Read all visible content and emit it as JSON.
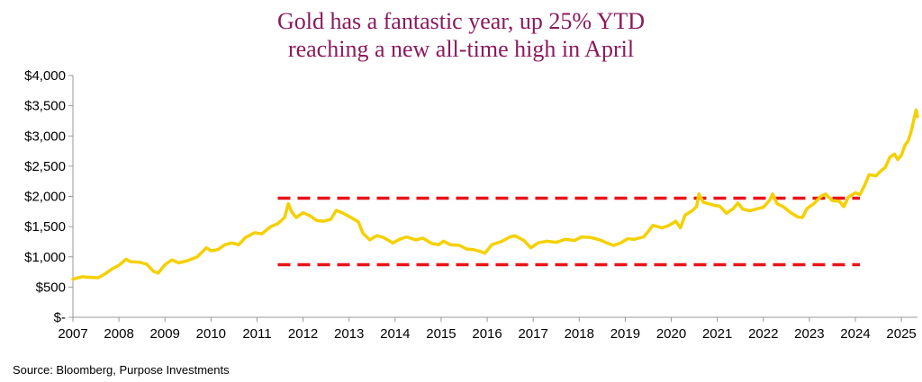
{
  "chart_data": {
    "type": "line",
    "title_lines": [
      "Gold has a fantastic year, up 25% YTD",
      "reaching a new all-time high in April"
    ],
    "source": "Source: Bloomberg, Purpose Investments",
    "y_ticks": [
      {
        "value": 0,
        "label": "$-"
      },
      {
        "value": 500,
        "label": "$500"
      },
      {
        "value": 1000,
        "label": "$1,000"
      },
      {
        "value": 1500,
        "label": "$1,500"
      },
      {
        "value": 2000,
        "label": "$2,000"
      },
      {
        "value": 2500,
        "label": "$2,500"
      },
      {
        "value": 3000,
        "label": "$3,000"
      },
      {
        "value": 3500,
        "label": "$3,500"
      },
      {
        "value": 4000,
        "label": "$4,000"
      }
    ],
    "x_ticks": [
      "2007",
      "2008",
      "2009",
      "2010",
      "2011",
      "2012",
      "2013",
      "2014",
      "2015",
      "2016",
      "2017",
      "2018",
      "2019",
      "2020",
      "2021",
      "2022",
      "2023",
      "2024",
      "2025"
    ],
    "xlim": [
      2007.0,
      2025.35
    ],
    "ylim": [
      0,
      4000
    ],
    "grid": false,
    "series": [
      {
        "color": "#f5d000",
        "points": [
          [
            2007.0,
            630
          ],
          [
            2007.2,
            670
          ],
          [
            2007.4,
            660
          ],
          [
            2007.55,
            655
          ],
          [
            2007.7,
            720
          ],
          [
            2007.85,
            800
          ],
          [
            2008.0,
            860
          ],
          [
            2008.15,
            960
          ],
          [
            2008.25,
            920
          ],
          [
            2008.45,
            910
          ],
          [
            2008.6,
            880
          ],
          [
            2008.75,
            760
          ],
          [
            2008.85,
            730
          ],
          [
            2009.0,
            870
          ],
          [
            2009.15,
            950
          ],
          [
            2009.3,
            900
          ],
          [
            2009.5,
            940
          ],
          [
            2009.7,
            1000
          ],
          [
            2009.9,
            1150
          ],
          [
            2010.0,
            1100
          ],
          [
            2010.15,
            1120
          ],
          [
            2010.3,
            1200
          ],
          [
            2010.45,
            1230
          ],
          [
            2010.6,
            1200
          ],
          [
            2010.75,
            1320
          ],
          [
            2010.95,
            1400
          ],
          [
            2011.1,
            1380
          ],
          [
            2011.3,
            1500
          ],
          [
            2011.45,
            1550
          ],
          [
            2011.6,
            1650
          ],
          [
            2011.68,
            1880
          ],
          [
            2011.75,
            1750
          ],
          [
            2011.85,
            1650
          ],
          [
            2012.0,
            1730
          ],
          [
            2012.15,
            1680
          ],
          [
            2012.3,
            1600
          ],
          [
            2012.45,
            1590
          ],
          [
            2012.6,
            1620
          ],
          [
            2012.72,
            1770
          ],
          [
            2012.85,
            1730
          ],
          [
            2013.0,
            1670
          ],
          [
            2013.2,
            1580
          ],
          [
            2013.3,
            1390
          ],
          [
            2013.45,
            1280
          ],
          [
            2013.6,
            1350
          ],
          [
            2013.75,
            1320
          ],
          [
            2013.95,
            1230
          ],
          [
            2014.1,
            1290
          ],
          [
            2014.25,
            1330
          ],
          [
            2014.45,
            1280
          ],
          [
            2014.6,
            1310
          ],
          [
            2014.8,
            1220
          ],
          [
            2014.95,
            1200
          ],
          [
            2015.05,
            1260
          ],
          [
            2015.2,
            1200
          ],
          [
            2015.4,
            1190
          ],
          [
            2015.55,
            1130
          ],
          [
            2015.7,
            1120
          ],
          [
            2015.85,
            1090
          ],
          [
            2015.95,
            1060
          ],
          [
            2016.1,
            1200
          ],
          [
            2016.3,
            1250
          ],
          [
            2016.5,
            1330
          ],
          [
            2016.6,
            1350
          ],
          [
            2016.8,
            1270
          ],
          [
            2016.95,
            1150
          ],
          [
            2017.1,
            1230
          ],
          [
            2017.3,
            1260
          ],
          [
            2017.5,
            1240
          ],
          [
            2017.7,
            1290
          ],
          [
            2017.9,
            1270
          ],
          [
            2018.05,
            1330
          ],
          [
            2018.25,
            1320
          ],
          [
            2018.45,
            1280
          ],
          [
            2018.6,
            1230
          ],
          [
            2018.75,
            1190
          ],
          [
            2018.9,
            1230
          ],
          [
            2019.05,
            1300
          ],
          [
            2019.2,
            1290
          ],
          [
            2019.4,
            1330
          ],
          [
            2019.5,
            1420
          ],
          [
            2019.6,
            1520
          ],
          [
            2019.8,
            1480
          ],
          [
            2019.95,
            1520
          ],
          [
            2020.1,
            1590
          ],
          [
            2020.2,
            1480
          ],
          [
            2020.3,
            1690
          ],
          [
            2020.45,
            1760
          ],
          [
            2020.55,
            1830
          ],
          [
            2020.6,
            2040
          ],
          [
            2020.7,
            1900
          ],
          [
            2020.85,
            1870
          ],
          [
            2020.95,
            1850
          ],
          [
            2021.05,
            1840
          ],
          [
            2021.2,
            1720
          ],
          [
            2021.35,
            1800
          ],
          [
            2021.45,
            1890
          ],
          [
            2021.55,
            1790
          ],
          [
            2021.7,
            1760
          ],
          [
            2021.85,
            1790
          ],
          [
            2022.0,
            1820
          ],
          [
            2022.15,
            1950
          ],
          [
            2022.2,
            2040
          ],
          [
            2022.3,
            1880
          ],
          [
            2022.45,
            1820
          ],
          [
            2022.6,
            1730
          ],
          [
            2022.75,
            1660
          ],
          [
            2022.85,
            1650
          ],
          [
            2022.95,
            1800
          ],
          [
            2023.1,
            1880
          ],
          [
            2023.25,
            2000
          ],
          [
            2023.35,
            2040
          ],
          [
            2023.5,
            1930
          ],
          [
            2023.65,
            1920
          ],
          [
            2023.75,
            1830
          ],
          [
            2023.85,
            1990
          ],
          [
            2024.0,
            2060
          ],
          [
            2024.1,
            2030
          ],
          [
            2024.2,
            2180
          ],
          [
            2024.3,
            2360
          ],
          [
            2024.45,
            2340
          ],
          [
            2024.55,
            2420
          ],
          [
            2024.65,
            2480
          ],
          [
            2024.75,
            2650
          ],
          [
            2024.85,
            2700
          ],
          [
            2024.92,
            2610
          ],
          [
            2025.0,
            2680
          ],
          [
            2025.08,
            2850
          ],
          [
            2025.15,
            2920
          ],
          [
            2025.22,
            3100
          ],
          [
            2025.28,
            3300
          ],
          [
            2025.32,
            3430
          ],
          [
            2025.35,
            3320
          ]
        ]
      }
    ],
    "annotations": [
      {
        "type": "dashed_line",
        "color": "#e8141a",
        "x": [
          2011.45,
          2024.1
        ],
        "y": 1970
      },
      {
        "type": "dashed_line",
        "color": "#e8141a",
        "x": [
          2011.45,
          2024.1
        ],
        "y": 870
      }
    ]
  }
}
